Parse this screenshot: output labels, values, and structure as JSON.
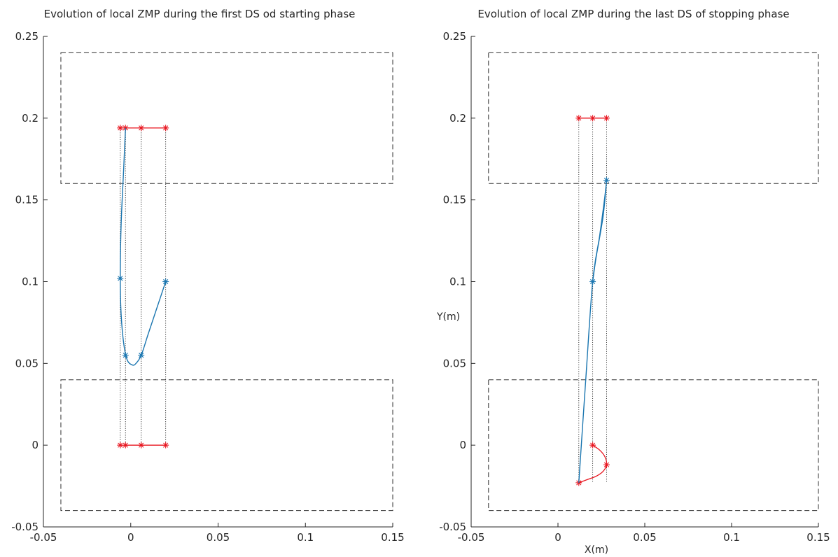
{
  "colors": {
    "axis": "#262626",
    "foot": "#303030",
    "red": "#e8141e",
    "blue": "#1b76b0",
    "guide": "#222222"
  },
  "chart_data": [
    {
      "type": "line",
      "title": "Evolution of local ZMP during the first DS od starting phase",
      "xlabel": "",
      "ylabel": "",
      "xlim": [
        -0.05,
        0.15
      ],
      "ylim": [
        -0.05,
        0.25
      ],
      "xticks": [
        -0.05,
        0,
        0.05,
        0.1,
        0.15
      ],
      "xtick_labels": [
        "-0.05",
        "0",
        "0.05",
        "0.1",
        "0.15"
      ],
      "yticks": [
        -0.05,
        0,
        0.05,
        0.1,
        0.15,
        0.2,
        0.25
      ],
      "ytick_labels": [
        "-0.05",
        "0",
        "0.05",
        "0.1",
        "0.15",
        "0.2",
        "0.25"
      ],
      "grid": false,
      "foot_rects": [
        {
          "x": [
            -0.04,
            0.15
          ],
          "y": [
            0.16,
            0.24
          ]
        },
        {
          "x": [
            -0.04,
            0.15
          ],
          "y": [
            -0.04,
            0.04
          ]
        }
      ],
      "guide_x": [
        -0.006,
        -0.003,
        0.006,
        0.02
      ],
      "red_lines": [
        {
          "x": [
            -0.006,
            -0.003,
            0.006,
            0.02
          ],
          "y": [
            0.194,
            0.194,
            0.194,
            0.194
          ]
        },
        {
          "x": [
            -0.006,
            -0.003,
            0.006,
            0.02
          ],
          "y": [
            0,
            0,
            0,
            0
          ]
        }
      ],
      "blue_curve": {
        "x": [
          -0.003,
          -0.004,
          -0.0055,
          -0.006,
          -0.0055,
          -0.004,
          -0.002,
          0.001,
          0.003,
          0.006,
          0.01,
          0.015,
          0.02
        ],
        "y": [
          0.194,
          0.17,
          0.135,
          0.102,
          0.08,
          0.062,
          0.052,
          0.049,
          0.05,
          0.055,
          0.068,
          0.084,
          0.1
        ]
      },
      "blue_markers": {
        "x": [
          -0.006,
          -0.003,
          0.006,
          0.02
        ],
        "y": [
          0.102,
          0.055,
          0.055,
          0.1
        ]
      }
    },
    {
      "type": "line",
      "title": "Evolution of local ZMP during the last DS of stopping phase",
      "xlabel": "X(m)",
      "ylabel": "Y(m)",
      "xlim": [
        -0.05,
        0.15
      ],
      "ylim": [
        -0.05,
        0.25
      ],
      "xticks": [
        -0.05,
        0,
        0.05,
        0.1,
        0.15
      ],
      "xtick_labels": [
        "-0.05",
        "0",
        "0.05",
        "0.1",
        "0.15"
      ],
      "yticks": [
        -0.05,
        0,
        0.05,
        0.1,
        0.15,
        0.2,
        0.25
      ],
      "ytick_labels": [
        "-0.05",
        "0",
        "0.05",
        "0.1",
        "0.15",
        "0.2",
        "0.25"
      ],
      "grid": false,
      "foot_rects": [
        {
          "x": [
            -0.04,
            0.15
          ],
          "y": [
            0.16,
            0.24
          ]
        },
        {
          "x": [
            -0.04,
            0.15
          ],
          "y": [
            -0.04,
            0.04
          ]
        }
      ],
      "guide_x": [
        0.012,
        0.02,
        0.028
      ],
      "red_lines": [
        {
          "x": [
            0.012,
            0.02,
            0.028
          ],
          "y": [
            0.2,
            0.2,
            0.2
          ]
        },
        {
          "x": [
            0.02,
            0.024,
            0.027,
            0.028,
            0.026,
            0.022,
            0.017,
            0.012
          ],
          "y": [
            0,
            -0.003,
            -0.007,
            -0.012,
            -0.016,
            -0.019,
            -0.021,
            -0.023
          ]
        }
      ],
      "red_markers": [
        {
          "x": 0.012,
          "y": 0.2
        },
        {
          "x": 0.02,
          "y": 0.2
        },
        {
          "x": 0.028,
          "y": 0.2
        },
        {
          "x": 0.02,
          "y": 0
        },
        {
          "x": 0.028,
          "y": -0.012
        },
        {
          "x": 0.012,
          "y": -0.023
        }
      ],
      "blue_curve": {
        "x": [
          0.012,
          0.016,
          0.02,
          0.024,
          0.027,
          0.028,
          0.026,
          0.022,
          0.02
        ],
        "y": [
          -0.023,
          0.04,
          0.1,
          0.128,
          0.152,
          0.162,
          0.14,
          0.115,
          0.1
        ]
      },
      "blue_markers": {
        "x": [
          0.02,
          0.028
        ],
        "y": [
          0.1,
          0.162
        ]
      }
    }
  ]
}
